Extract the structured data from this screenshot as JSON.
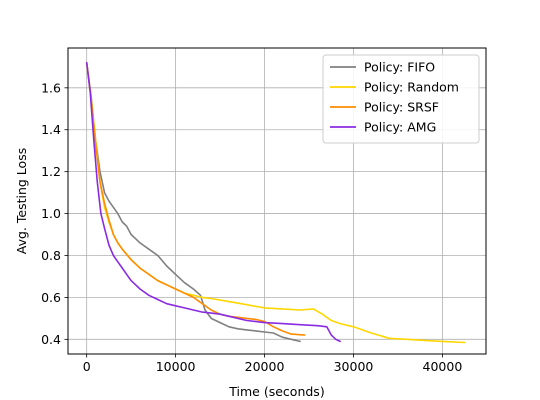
{
  "chart_data": {
    "type": "line",
    "title": "",
    "xlabel": "Time (seconds)",
    "ylabel": "Avg. Testing Loss",
    "xlim": [
      -2100,
      44900
    ],
    "ylim": [
      0.33,
      1.79
    ],
    "xticks": [
      0,
      10000,
      20000,
      30000,
      40000
    ],
    "yticks": [
      0.4,
      0.6,
      0.8,
      1.0,
      1.2,
      1.4,
      1.6
    ],
    "xtick_labels": [
      "0",
      "10000",
      "20000",
      "30000",
      "40000"
    ],
    "ytick_labels": [
      "0.4",
      "0.6",
      "0.8",
      "1.0",
      "1.2",
      "1.4",
      "1.6"
    ],
    "grid": true,
    "legend_position": "top-right",
    "series": [
      {
        "name": "Policy: FIFO",
        "color": "#808080",
        "x": [
          0,
          500,
          1000,
          1500,
          2000,
          2500,
          3000,
          3500,
          4000,
          4500,
          5000,
          5500,
          6000,
          7000,
          8000,
          9000,
          10000,
          11000,
          12000,
          12800,
          13300,
          14000,
          15000,
          16000,
          17000,
          18000,
          19000,
          20000,
          21000,
          22000,
          23000,
          24000
        ],
        "y": [
          1.72,
          1.56,
          1.35,
          1.2,
          1.1,
          1.06,
          1.03,
          1.0,
          0.96,
          0.94,
          0.9,
          0.88,
          0.86,
          0.83,
          0.8,
          0.75,
          0.71,
          0.67,
          0.64,
          0.61,
          0.54,
          0.5,
          0.48,
          0.46,
          0.45,
          0.445,
          0.44,
          0.435,
          0.43,
          0.41,
          0.4,
          0.39
        ]
      },
      {
        "name": "Policy: Random",
        "color": "#ffd700",
        "x": [
          0,
          500,
          1000,
          1500,
          2000,
          2500,
          3000,
          3500,
          4000,
          5000,
          6000,
          7000,
          8000,
          9000,
          10000,
          11000,
          12000,
          13000,
          14000,
          16000,
          18000,
          20000,
          22000,
          24000,
          25500,
          26500,
          27500,
          28500,
          30000,
          32000,
          34000,
          36000,
          38000,
          40000,
          42500
        ],
        "y": [
          1.72,
          1.55,
          1.35,
          1.15,
          1.03,
          0.96,
          0.9,
          0.86,
          0.83,
          0.78,
          0.74,
          0.71,
          0.68,
          0.66,
          0.64,
          0.62,
          0.61,
          0.6,
          0.595,
          0.58,
          0.565,
          0.55,
          0.545,
          0.54,
          0.545,
          0.52,
          0.49,
          0.475,
          0.46,
          0.43,
          0.405,
          0.4,
          0.395,
          0.39,
          0.385
        ]
      },
      {
        "name": "Policy: SRSF",
        "color": "#ff8c00",
        "x": [
          0,
          500,
          1000,
          1500,
          2000,
          2500,
          3000,
          3500,
          4000,
          5000,
          6000,
          7000,
          8000,
          9000,
          10000,
          11000,
          12000,
          13000,
          14000,
          15000,
          16000,
          17000,
          18000,
          19000,
          20000,
          21000,
          22000,
          23000,
          24500
        ],
        "y": [
          1.72,
          1.55,
          1.33,
          1.15,
          1.05,
          0.97,
          0.9,
          0.86,
          0.83,
          0.78,
          0.74,
          0.71,
          0.68,
          0.66,
          0.64,
          0.62,
          0.6,
          0.57,
          0.54,
          0.52,
          0.51,
          0.505,
          0.5,
          0.495,
          0.485,
          0.46,
          0.44,
          0.425,
          0.42
        ]
      },
      {
        "name": "Policy: AMG",
        "color": "#8a2be2",
        "x": [
          0,
          400,
          800,
          1200,
          1600,
          2000,
          2500,
          3000,
          3500,
          4000,
          4500,
          5000,
          5500,
          6000,
          7000,
          8000,
          9000,
          10000,
          11000,
          12000,
          13000,
          14000,
          15000,
          16000,
          18000,
          20000,
          22000,
          24000,
          26000,
          27000,
          27500,
          28000,
          28500
        ],
        "y": [
          1.72,
          1.58,
          1.35,
          1.15,
          1.0,
          0.93,
          0.85,
          0.8,
          0.77,
          0.74,
          0.71,
          0.68,
          0.66,
          0.64,
          0.61,
          0.59,
          0.57,
          0.56,
          0.55,
          0.54,
          0.53,
          0.525,
          0.52,
          0.51,
          0.49,
          0.48,
          0.475,
          0.47,
          0.465,
          0.46,
          0.42,
          0.4,
          0.39
        ]
      }
    ]
  }
}
